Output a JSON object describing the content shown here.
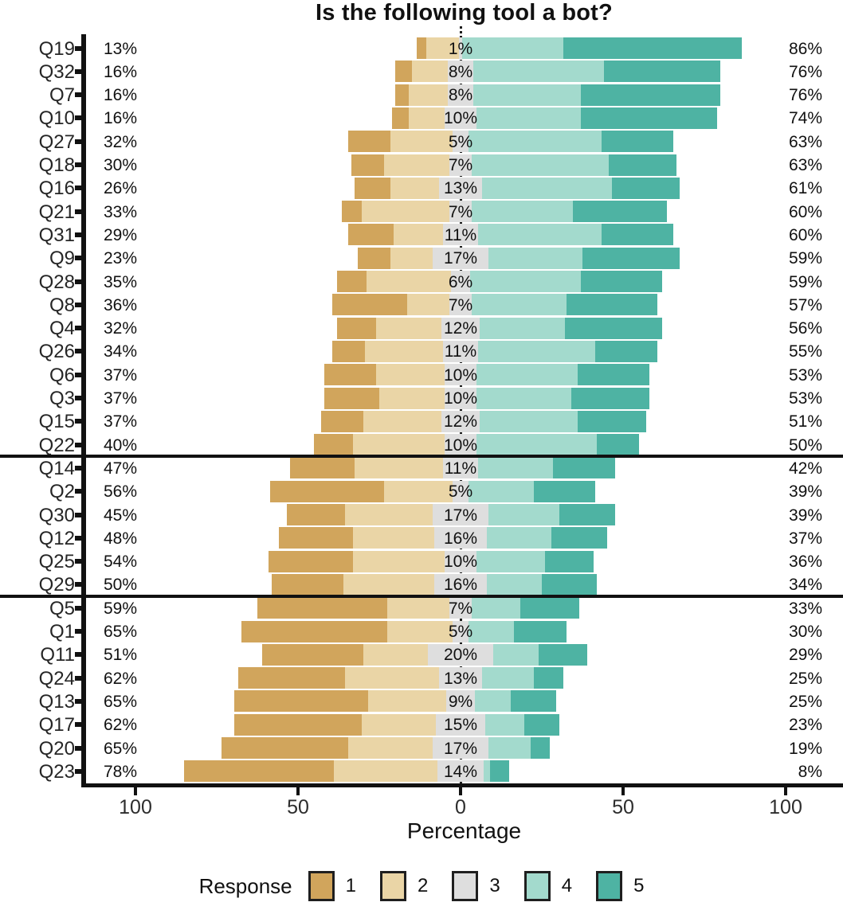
{
  "title": "Is the following tool a bot?",
  "xlabel": "Percentage",
  "legend": {
    "title": "Response",
    "items": [
      {
        "label": "1",
        "color": "#d1a55c"
      },
      {
        "label": "2",
        "color": "#ead5a6"
      },
      {
        "label": "3",
        "color": "#dedede"
      },
      {
        "label": "4",
        "color": "#a3dacd"
      },
      {
        "label": "5",
        "color": "#4eb3a3"
      }
    ]
  },
  "chart_data": {
    "type": "bar",
    "subtype": "diverging-stacked-likert",
    "title": "Is the following tool a bot?",
    "xlabel": "Percentage",
    "x_ticks": [
      "100",
      "50",
      "0",
      "50",
      "100"
    ],
    "x_tick_percents": [
      -100,
      -50,
      0,
      50,
      100
    ],
    "series_names": [
      "1",
      "2",
      "3",
      "4",
      "5"
    ],
    "legend_position": "bottom",
    "note": "left label = responses 1+2, center label = response 3 (centered on zero), right label = responses 4+5; values[] are estimated per-segment percentages",
    "rows": [
      {
        "q": "Q19",
        "left": "13%",
        "center": "1%",
        "right": "86%",
        "values": [
          3,
          10,
          1,
          31,
          55
        ]
      },
      {
        "q": "Q32",
        "left": "16%",
        "center": "8%",
        "right": "76%",
        "values": [
          5,
          11,
          8,
          40,
          36
        ]
      },
      {
        "q": "Q7",
        "left": "16%",
        "center": "8%",
        "right": "76%",
        "values": [
          4,
          12,
          8,
          33,
          43
        ]
      },
      {
        "q": "Q10",
        "left": "16%",
        "center": "10%",
        "right": "74%",
        "values": [
          5,
          11,
          10,
          32,
          42
        ]
      },
      {
        "q": "Q27",
        "left": "32%",
        "center": "5%",
        "right": "63%",
        "values": [
          13,
          19,
          5,
          41,
          22
        ]
      },
      {
        "q": "Q18",
        "left": "30%",
        "center": "7%",
        "right": "63%",
        "values": [
          10,
          20,
          7,
          42,
          21
        ]
      },
      {
        "q": "Q16",
        "left": "26%",
        "center": "13%",
        "right": "61%",
        "values": [
          11,
          15,
          13,
          40,
          21
        ]
      },
      {
        "q": "Q21",
        "left": "33%",
        "center": "7%",
        "right": "60%",
        "values": [
          6,
          27,
          7,
          31,
          29
        ]
      },
      {
        "q": "Q31",
        "left": "29%",
        "center": "11%",
        "right": "60%",
        "values": [
          14,
          15,
          11,
          38,
          22
        ]
      },
      {
        "q": "Q9",
        "left": "23%",
        "center": "17%",
        "right": "59%",
        "values": [
          10,
          13,
          17,
          29,
          30
        ]
      },
      {
        "q": "Q28",
        "left": "35%",
        "center": "6%",
        "right": "59%",
        "values": [
          9,
          26,
          6,
          34,
          25
        ]
      },
      {
        "q": "Q8",
        "left": "36%",
        "center": "7%",
        "right": "57%",
        "values": [
          23,
          13,
          7,
          29,
          28
        ]
      },
      {
        "q": "Q4",
        "left": "32%",
        "center": "12%",
        "right": "56%",
        "values": [
          12,
          20,
          12,
          26,
          30
        ]
      },
      {
        "q": "Q26",
        "left": "34%",
        "center": "11%",
        "right": "55%",
        "values": [
          10,
          24,
          11,
          36,
          19
        ]
      },
      {
        "q": "Q6",
        "left": "37%",
        "center": "10%",
        "right": "53%",
        "values": [
          16,
          21,
          10,
          31,
          22
        ]
      },
      {
        "q": "Q3",
        "left": "37%",
        "center": "10%",
        "right": "53%",
        "values": [
          17,
          20,
          10,
          29,
          24
        ]
      },
      {
        "q": "Q15",
        "left": "37%",
        "center": "12%",
        "right": "51%",
        "values": [
          13,
          24,
          12,
          30,
          21
        ]
      },
      {
        "q": "Q22",
        "left": "40%",
        "center": "10%",
        "right": "50%",
        "values": [
          12,
          28,
          10,
          37,
          13
        ]
      },
      {
        "q": "Q14",
        "left": "47%",
        "center": "11%",
        "right": "42%",
        "values": [
          20,
          27,
          11,
          23,
          19
        ]
      },
      {
        "q": "Q2",
        "left": "56%",
        "center": "5%",
        "right": "39%",
        "values": [
          35,
          21,
          5,
          20,
          19
        ]
      },
      {
        "q": "Q30",
        "left": "45%",
        "center": "17%",
        "right": "39%",
        "values": [
          18,
          27,
          17,
          22,
          17
        ]
      },
      {
        "q": "Q12",
        "left": "48%",
        "center": "16%",
        "right": "37%",
        "values": [
          23,
          25,
          16,
          20,
          17
        ]
      },
      {
        "q": "Q25",
        "left": "54%",
        "center": "10%",
        "right": "36%",
        "values": [
          26,
          28,
          10,
          21,
          15
        ]
      },
      {
        "q": "Q29",
        "left": "50%",
        "center": "16%",
        "right": "34%",
        "values": [
          22,
          28,
          16,
          17,
          17
        ]
      },
      {
        "q": "Q5",
        "left": "59%",
        "center": "7%",
        "right": "33%",
        "values": [
          40,
          19,
          7,
          15,
          18
        ]
      },
      {
        "q": "Q1",
        "left": "65%",
        "center": "5%",
        "right": "30%",
        "values": [
          45,
          20,
          5,
          14,
          16
        ]
      },
      {
        "q": "Q11",
        "left": "51%",
        "center": "20%",
        "right": "29%",
        "values": [
          31,
          20,
          20,
          14,
          15
        ]
      },
      {
        "q": "Q24",
        "left": "62%",
        "center": "13%",
        "right": "25%",
        "values": [
          33,
          29,
          13,
          16,
          9
        ]
      },
      {
        "q": "Q13",
        "left": "65%",
        "center": "9%",
        "right": "25%",
        "values": [
          41,
          24,
          9,
          11,
          14
        ]
      },
      {
        "q": "Q17",
        "left": "62%",
        "center": "15%",
        "right": "23%",
        "values": [
          39,
          23,
          15,
          12,
          11
        ]
      },
      {
        "q": "Q20",
        "left": "65%",
        "center": "17%",
        "right": "19%",
        "values": [
          39,
          26,
          17,
          13,
          6
        ]
      },
      {
        "q": "Q23",
        "left": "78%",
        "center": "14%",
        "right": "8%",
        "values": [
          46,
          32,
          14,
          2,
          6
        ]
      }
    ],
    "dividers_after": [
      "Q22",
      "Q29"
    ]
  },
  "colors": {
    "response_1": "#d1a55c",
    "response_2": "#ead5a6",
    "response_3": "#dedede",
    "response_4": "#a3dacd",
    "response_5": "#4eb3a3",
    "axis": "#111111",
    "text": "#1a1a1a"
  }
}
